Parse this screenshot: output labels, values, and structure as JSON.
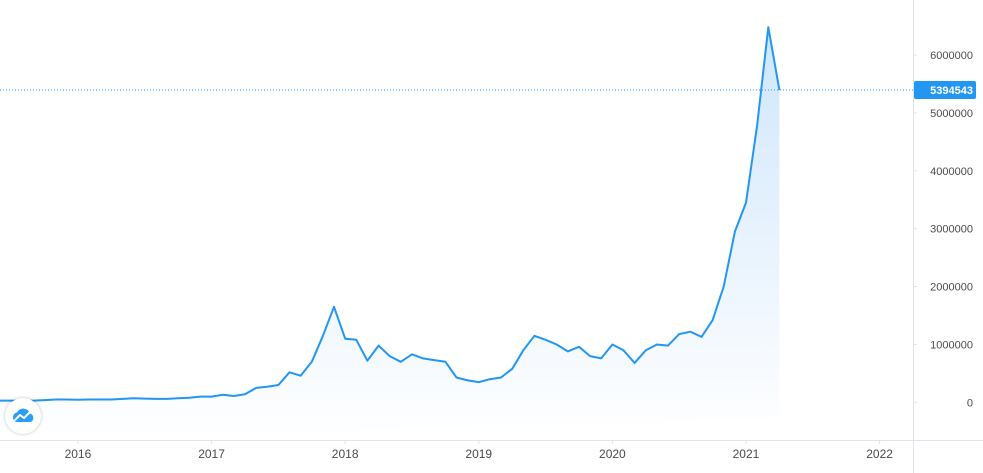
{
  "colors": {
    "line": "#2196f3",
    "area_top": "#cfe6fb",
    "area_bottom": "#ffffff",
    "last_value_bg": "#2196f3",
    "axis": "#e0e3eb",
    "crosshair": "#2196f3"
  },
  "logo": {
    "icon": "cloud-chart-icon"
  },
  "chart_data": {
    "type": "area",
    "title": "",
    "xlabel": "",
    "ylabel": "",
    "x_ticks": [
      "2016",
      "2017",
      "2018",
      "2019",
      "2020",
      "2021",
      "2022"
    ],
    "y_ticks": [
      "0",
      "1000000",
      "2000000",
      "3000000",
      "4000000",
      "5000000",
      "6000000"
    ],
    "ylim": [
      -650000,
      6950000
    ],
    "xlim": [
      "2015-06",
      "2022-04"
    ],
    "last_value": {
      "label": "5394543",
      "value": 5394543
    },
    "grid": false,
    "legend": "none",
    "series": [
      {
        "dates": [
          "2015-06",
          "2015-07",
          "2015-08",
          "2015-09",
          "2015-10",
          "2015-11",
          "2015-12",
          "2016-01",
          "2016-02",
          "2016-03",
          "2016-04",
          "2016-05",
          "2016-06",
          "2016-07",
          "2016-08",
          "2016-09",
          "2016-10",
          "2016-11",
          "2016-12",
          "2017-01",
          "2017-02",
          "2017-03",
          "2017-04",
          "2017-05",
          "2017-06",
          "2017-07",
          "2017-08",
          "2017-09",
          "2017-10",
          "2017-11",
          "2017-12",
          "2018-01",
          "2018-02",
          "2018-03",
          "2018-04",
          "2018-05",
          "2018-06",
          "2018-07",
          "2018-08",
          "2018-09",
          "2018-10",
          "2018-11",
          "2018-12",
          "2019-01",
          "2019-02",
          "2019-03",
          "2019-04",
          "2019-05",
          "2019-06",
          "2019-07",
          "2019-08",
          "2019-09",
          "2019-10",
          "2019-11",
          "2019-12",
          "2020-01",
          "2020-02",
          "2020-03",
          "2020-04",
          "2020-05",
          "2020-06",
          "2020-07",
          "2020-08",
          "2020-09",
          "2020-10",
          "2020-11",
          "2020-12",
          "2021-01",
          "2021-02",
          "2021-03",
          "2021-04"
        ],
        "values": [
          30000,
          30000,
          25000,
          30000,
          40000,
          50000,
          50000,
          45000,
          50000,
          50000,
          50000,
          60000,
          70000,
          65000,
          60000,
          60000,
          70000,
          80000,
          100000,
          100000,
          130000,
          110000,
          140000,
          250000,
          270000,
          300000,
          520000,
          460000,
          700000,
          1150000,
          1650000,
          1100000,
          1080000,
          720000,
          980000,
          800000,
          700000,
          830000,
          760000,
          730000,
          700000,
          430000,
          380000,
          350000,
          400000,
          430000,
          580000,
          900000,
          1150000,
          1080000,
          1000000,
          880000,
          960000,
          800000,
          760000,
          1000000,
          900000,
          680000,
          900000,
          1000000,
          980000,
          1180000,
          1220000,
          1130000,
          1420000,
          2000000,
          2950000,
          3450000,
          4780000,
          6480000,
          5394543
        ]
      }
    ]
  }
}
